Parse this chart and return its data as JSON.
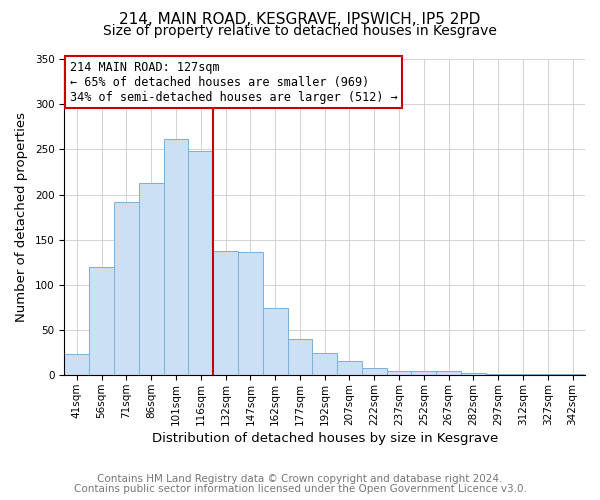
{
  "title": "214, MAIN ROAD, KESGRAVE, IPSWICH, IP5 2PD",
  "subtitle": "Size of property relative to detached houses in Kesgrave",
  "xlabel": "Distribution of detached houses by size in Kesgrave",
  "ylabel": "Number of detached properties",
  "bar_labels": [
    "41sqm",
    "56sqm",
    "71sqm",
    "86sqm",
    "101sqm",
    "116sqm",
    "132sqm",
    "147sqm",
    "162sqm",
    "177sqm",
    "192sqm",
    "207sqm",
    "222sqm",
    "237sqm",
    "252sqm",
    "267sqm",
    "282sqm",
    "297sqm",
    "312sqm",
    "327sqm",
    "342sqm"
  ],
  "bar_values": [
    24,
    120,
    192,
    213,
    261,
    248,
    137,
    136,
    75,
    40,
    25,
    16,
    8,
    5,
    5,
    5,
    2,
    1,
    1,
    1,
    1
  ],
  "bar_color": "#cce0f5",
  "bar_edge_color": "#7ab0d8",
  "vline_x": 6,
  "vline_color": "#cc0000",
  "annotation_title": "214 MAIN ROAD: 127sqm",
  "annotation_line1": "← 65% of detached houses are smaller (969)",
  "annotation_line2": "34% of semi-detached houses are larger (512) →",
  "annotation_box_color": "#cc0000",
  "ylim": [
    0,
    350
  ],
  "yticks": [
    0,
    50,
    100,
    150,
    200,
    250,
    300,
    350
  ],
  "footer1": "Contains HM Land Registry data © Crown copyright and database right 2024.",
  "footer2": "Contains public sector information licensed under the Open Government Licence v3.0.",
  "title_fontsize": 11,
  "subtitle_fontsize": 10,
  "axis_label_fontsize": 9.5,
  "tick_fontsize": 7.5,
  "annotation_fontsize": 8.5,
  "footer_fontsize": 7.5
}
